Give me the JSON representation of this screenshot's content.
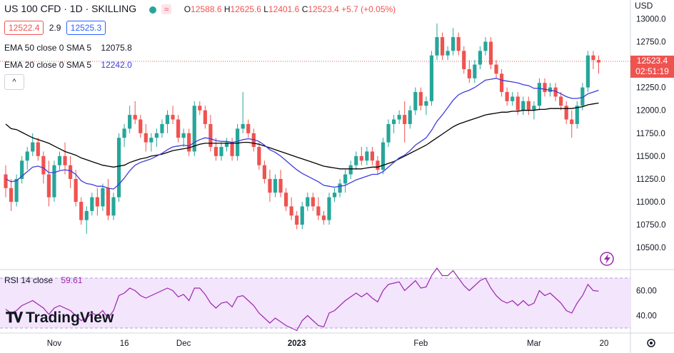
{
  "header": {
    "symbol": "US 100 CFD · 1D · SKILLING",
    "ohlc": {
      "o_label": "O",
      "o": "12588.6",
      "h_label": "H",
      "h": "12625.6",
      "l_label": "L",
      "l": "12401.6",
      "c_label": "C",
      "c": "12523.4",
      "change": "+5.7 (+0.05%)"
    },
    "bid": "12522.4",
    "spread": "2.9",
    "ask": "12525.3",
    "currency": "USD"
  },
  "indicators": {
    "ema50": {
      "label": "EMA 50 close 0 SMA 5",
      "value": "12075.8",
      "color": "#000000"
    },
    "ema20": {
      "label": "EMA 20 close 0 SMA 5",
      "value": "12242.0",
      "color": "#3c3cdc"
    }
  },
  "price_axis": {
    "ticks": [
      "13000.0",
      "12750.0",
      "12500.0",
      "12250.0",
      "12000.0",
      "11750.0",
      "11500.0",
      "11250.0",
      "11000.0",
      "10750.0",
      "10500.0"
    ],
    "last_price": "12523.4",
    "countdown": "02:51:19"
  },
  "rsi": {
    "label": "RSI 14 close",
    "value": "59.61",
    "ticks": [
      "60.00",
      "40.00"
    ],
    "color": "#9c27b0"
  },
  "time_axis": {
    "labels": [
      "Nov",
      "16",
      "Dec",
      "2023",
      "Feb",
      "Mar",
      "20"
    ]
  },
  "branding": {
    "name": "TradingView"
  },
  "colors": {
    "up": "#26a69a",
    "down": "#ef5350",
    "rsi_band": "#f3e5fb"
  },
  "chart_data": {
    "type": "candlestick",
    "y_range": [
      10400,
      13050
    ],
    "candles": [
      [
        11300,
        11400,
        11050,
        11150
      ],
      [
        11150,
        11250,
        10900,
        11000
      ],
      [
        11000,
        11300,
        10950,
        11250
      ],
      [
        11250,
        11500,
        11200,
        11450
      ],
      [
        11450,
        11600,
        11350,
        11550
      ],
      [
        11550,
        11750,
        11500,
        11650
      ],
      [
        11650,
        11700,
        11450,
        11500
      ],
      [
        11500,
        11550,
        11200,
        11300
      ],
      [
        11300,
        11450,
        10950,
        11050
      ],
      [
        11050,
        11450,
        11000,
        11400
      ],
      [
        11400,
        11550,
        11350,
        11500
      ],
      [
        11500,
        11650,
        11300,
        11400
      ],
      [
        11400,
        11500,
        11150,
        11250
      ],
      [
        11250,
        11350,
        10950,
        11000
      ],
      [
        11000,
        11050,
        10750,
        10800
      ],
      [
        10800,
        10950,
        10650,
        10900
      ],
      [
        10900,
        11100,
        10850,
        11050
      ],
      [
        11050,
        11150,
        10850,
        10950
      ],
      [
        10950,
        11200,
        10900,
        11150
      ],
      [
        11150,
        11250,
        10800,
        10850
      ],
      [
        10850,
        11100,
        10800,
        11050
      ],
      [
        11050,
        11750,
        11000,
        11700
      ],
      [
        11700,
        11850,
        11600,
        11800
      ],
      [
        11800,
        12050,
        11750,
        11950
      ],
      [
        11950,
        12100,
        11850,
        11900
      ],
      [
        11900,
        11950,
        11700,
        11750
      ],
      [
        11750,
        11850,
        11550,
        11650
      ],
      [
        11650,
        11750,
        11550,
        11700
      ],
      [
        11700,
        11800,
        11600,
        11750
      ],
      [
        11750,
        11900,
        11700,
        11850
      ],
      [
        11850,
        12000,
        11750,
        11950
      ],
      [
        11950,
        12050,
        11850,
        11900
      ],
      [
        11900,
        11950,
        11650,
        11700
      ],
      [
        11700,
        11800,
        11600,
        11750
      ],
      [
        11750,
        11800,
        11500,
        11550
      ],
      [
        11550,
        12100,
        11500,
        12050
      ],
      [
        12050,
        12100,
        11950,
        12000
      ],
      [
        12000,
        12050,
        11800,
        11850
      ],
      [
        11850,
        11950,
        11550,
        11600
      ],
      [
        11600,
        11700,
        11450,
        11500
      ],
      [
        11500,
        11650,
        11450,
        11600
      ],
      [
        11600,
        11700,
        11550,
        11650
      ],
      [
        11650,
        11700,
        11450,
        11500
      ],
      [
        11500,
        11850,
        11450,
        11800
      ],
      [
        11800,
        12200,
        11750,
        11850
      ],
      [
        11850,
        11900,
        11700,
        11750
      ],
      [
        11750,
        11800,
        11550,
        11600
      ],
      [
        11600,
        11650,
        11350,
        11400
      ],
      [
        11400,
        11450,
        11200,
        11250
      ],
      [
        11250,
        11350,
        11000,
        11100
      ],
      [
        11100,
        11300,
        11050,
        11250
      ],
      [
        11250,
        11350,
        11050,
        11100
      ],
      [
        11100,
        11150,
        10900,
        10950
      ],
      [
        10950,
        11050,
        10800,
        10850
      ],
      [
        10850,
        10900,
        10700,
        10750
      ],
      [
        10750,
        11000,
        10700,
        10950
      ],
      [
        10950,
        11100,
        10900,
        11050
      ],
      [
        11050,
        11100,
        10900,
        10950
      ],
      [
        10950,
        11050,
        10800,
        10850
      ],
      [
        10850,
        10900,
        10750,
        10800
      ],
      [
        10800,
        11100,
        10750,
        11050
      ],
      [
        11050,
        11150,
        11000,
        11100
      ],
      [
        11100,
        11250,
        11050,
        11200
      ],
      [
        11200,
        11350,
        11100,
        11300
      ],
      [
        11300,
        11450,
        11250,
        11400
      ],
      [
        11400,
        11550,
        11350,
        11500
      ],
      [
        11500,
        11600,
        11400,
        11450
      ],
      [
        11450,
        11600,
        11400,
        11550
      ],
      [
        11550,
        11600,
        11400,
        11450
      ],
      [
        11450,
        11500,
        11300,
        11350
      ],
      [
        11350,
        11700,
        11300,
        11650
      ],
      [
        11650,
        11900,
        11600,
        11850
      ],
      [
        11850,
        11950,
        11750,
        11900
      ],
      [
        11900,
        12000,
        11850,
        11950
      ],
      [
        11950,
        12100,
        11650,
        11850
      ],
      [
        11850,
        12050,
        11800,
        12000
      ],
      [
        12000,
        12250,
        11950,
        12200
      ],
      [
        12200,
        12250,
        12000,
        12050
      ],
      [
        12050,
        12150,
        11950,
        12100
      ],
      [
        12100,
        12650,
        12050,
        12600
      ],
      [
        12600,
        12950,
        12550,
        12800
      ],
      [
        12800,
        12850,
        12550,
        12600
      ],
      [
        12600,
        12700,
        12550,
        12650
      ],
      [
        12650,
        12900,
        12600,
        12800
      ],
      [
        12800,
        12850,
        12600,
        12650
      ],
      [
        12650,
        12700,
        12400,
        12450
      ],
      [
        12450,
        12550,
        12300,
        12350
      ],
      [
        12350,
        12550,
        12300,
        12500
      ],
      [
        12500,
        12700,
        12450,
        12650
      ],
      [
        12650,
        12800,
        12600,
        12750
      ],
      [
        12750,
        12800,
        12450,
        12500
      ],
      [
        12500,
        12550,
        12350,
        12400
      ],
      [
        12400,
        12450,
        12150,
        12200
      ],
      [
        12200,
        12250,
        12050,
        12100
      ],
      [
        12100,
        12200,
        12050,
        12150
      ],
      [
        12150,
        12200,
        11950,
        12000
      ],
      [
        12000,
        12150,
        11950,
        12100
      ],
      [
        12100,
        12150,
        11950,
        12000
      ],
      [
        12000,
        12100,
        11900,
        12050
      ],
      [
        12050,
        12350,
        12000,
        12300
      ],
      [
        12300,
        12350,
        12150,
        12200
      ],
      [
        12200,
        12300,
        12150,
        12250
      ],
      [
        12250,
        12300,
        12100,
        12150
      ],
      [
        12150,
        12200,
        12000,
        12050
      ],
      [
        12050,
        12100,
        11850,
        11900
      ],
      [
        11900,
        12000,
        11700,
        11850
      ],
      [
        11850,
        12100,
        11800,
        12050
      ],
      [
        12050,
        12300,
        12000,
        12250
      ],
      [
        12250,
        12650,
        12200,
        12600
      ],
      [
        12600,
        12650,
        12450,
        12550
      ],
      [
        12550,
        12600,
        12400,
        12523
      ]
    ],
    "ema20": [
      11250,
      11220,
      11230,
      11280,
      11330,
      11380,
      11390,
      11370,
      11320,
      11320,
      11340,
      11350,
      11340,
      11300,
      11230,
      11200,
      11190,
      11170,
      11170,
      11150,
      11140,
      11190,
      11260,
      11340,
      11400,
      11430,
      11450,
      11470,
      11500,
      11530,
      11570,
      11600,
      11610,
      11620,
      11610,
      11650,
      11680,
      11700,
      11690,
      11670,
      11660,
      11660,
      11650,
      11660,
      11680,
      11690,
      11680,
      11660,
      11620,
      11570,
      11540,
      11500,
      11450,
      11400,
      11350,
      11310,
      11280,
      11250,
      11220,
      11180,
      11170,
      11160,
      11170,
      11180,
      11210,
      11240,
      11260,
      11280,
      11300,
      11300,
      11330,
      11380,
      11430,
      11480,
      11510,
      11560,
      11620,
      11660,
      11700,
      11780,
      11880,
      11950,
      12030,
      12110,
      12170,
      12200,
      12220,
      12250,
      12290,
      12330,
      12340,
      12350,
      12330,
      12320,
      12310,
      12300,
      12280,
      12270,
      12240,
      12240,
      12230,
      12220,
      12210,
      12180,
      12150,
      12130,
      12130,
      12140,
      12180,
      12200,
      12220
    ],
    "ema50": [
      11850,
      11800,
      11790,
      11760,
      11730,
      11700,
      11680,
      11660,
      11640,
      11610,
      11580,
      11550,
      11530,
      11510,
      11480,
      11460,
      11440,
      11420,
      11400,
      11390,
      11380,
      11390,
      11400,
      11430,
      11450,
      11470,
      11480,
      11500,
      11510,
      11520,
      11540,
      11560,
      11570,
      11580,
      11590,
      11610,
      11630,
      11640,
      11640,
      11640,
      11640,
      11640,
      11640,
      11640,
      11650,
      11650,
      11640,
      11630,
      11610,
      11590,
      11570,
      11550,
      11530,
      11510,
      11490,
      11470,
      11450,
      11430,
      11410,
      11390,
      11380,
      11370,
      11360,
      11360,
      11360,
      11360,
      11360,
      11370,
      11380,
      11380,
      11400,
      11420,
      11440,
      11470,
      11500,
      11530,
      11560,
      11590,
      11620,
      11660,
      11700,
      11740,
      11780,
      11820,
      11850,
      11870,
      11890,
      11910,
      11930,
      11950,
      11960,
      11970,
      11980,
      11980,
      11990,
      11990,
      12000,
      12000,
      12000,
      12010,
      12010,
      12020,
      12020,
      12020,
      12020,
      12020,
      12030,
      12040,
      12060,
      12070,
      12080
    ],
    "rsi_values": [
      45,
      42,
      44,
      48,
      50,
      52,
      49,
      46,
      41,
      46,
      48,
      46,
      44,
      40,
      36,
      38,
      42,
      40,
      44,
      38,
      44,
      56,
      58,
      62,
      60,
      56,
      54,
      56,
      58,
      60,
      62,
      60,
      55,
      57,
      52,
      62,
      62,
      57,
      50,
      46,
      50,
      51,
      47,
      55,
      56,
      52,
      48,
      42,
      38,
      34,
      38,
      35,
      32,
      30,
      28,
      36,
      40,
      36,
      32,
      31,
      42,
      44,
      48,
      52,
      55,
      58,
      55,
      58,
      54,
      51,
      60,
      65,
      66,
      67,
      60,
      64,
      68,
      62,
      63,
      72,
      78,
      72,
      72,
      76,
      70,
      64,
      60,
      64,
      68,
      70,
      62,
      56,
      52,
      50,
      52,
      48,
      52,
      48,
      50,
      60,
      56,
      58,
      54,
      50,
      44,
      42,
      50,
      56,
      65,
      60,
      59.61
    ],
    "rsi_range": [
      20,
      80
    ]
  }
}
